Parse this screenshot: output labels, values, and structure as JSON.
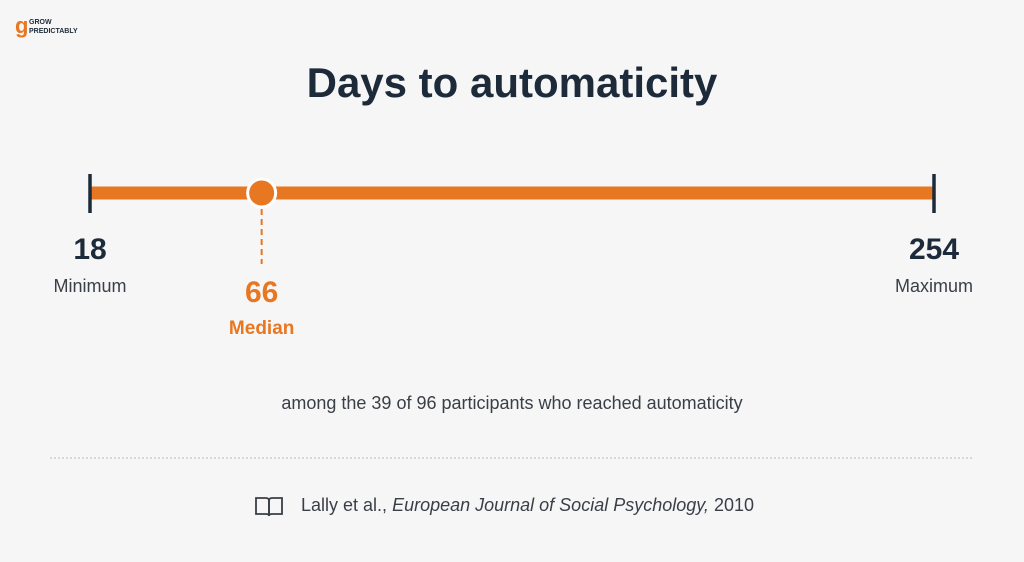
{
  "brand": [
    "GROW",
    "PREDICTABLY"
  ],
  "chart_data": {
    "type": "range",
    "title": "Days to automaticity",
    "xlim": [
      18,
      254
    ],
    "line_color": "#e87722",
    "points": [
      {
        "value": 18,
        "label": "Minimum",
        "marker": "cap",
        "color": "#1c2a3a"
      },
      {
        "value": 66,
        "label": "Median",
        "marker": "dot",
        "color": "#e87722"
      },
      {
        "value": 254,
        "label": "Maximum",
        "marker": "cap",
        "color": "#1c2a3a"
      }
    ],
    "note": "among the 39 of 96 participants who reached automaticity"
  },
  "citation": {
    "authors": "Lally et al.,",
    "journal": "European Journal of Social Psychology,",
    "year": 2010
  }
}
